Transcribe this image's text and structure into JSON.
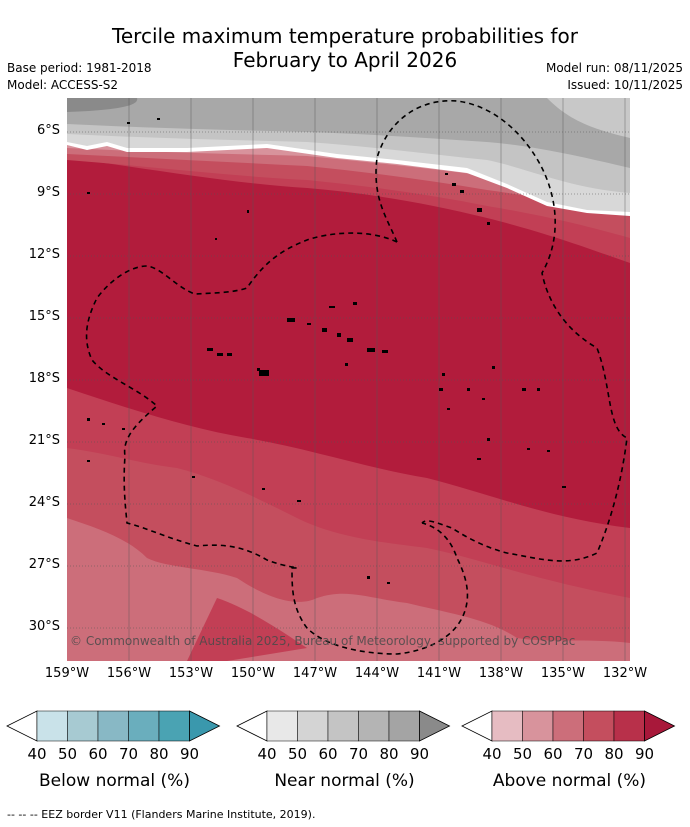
{
  "title_line1": "Tercile maximum temperature probabilities for",
  "title_line2": "February to April 2026",
  "base_period": "Base period: 1981-2018",
  "model": "Model: ACCESS-S2",
  "model_run": "Model run: 08/11/2025",
  "issued": "Issued: 10/11/2025",
  "copyright": "© Commonwealth of Australia 2025, Bureau of Meteorology, supported by COSPPac",
  "lat_labels": [
    "6°S",
    "9°S",
    "12°S",
    "15°S",
    "18°S",
    "21°S",
    "24°S",
    "27°S",
    "30°S"
  ],
  "lon_labels": [
    "159°W",
    "156°W",
    "153°W",
    "150°W",
    "147°W",
    "144°W",
    "141°W",
    "138°W",
    "135°W",
    "132°W"
  ],
  "legends": [
    {
      "title": "Below normal (%)",
      "ticks": [
        "40",
        "50",
        "60",
        "70",
        "80",
        "90"
      ],
      "colors": [
        "#c9e2e9",
        "#a7cad2",
        "#88b8c5",
        "#6aaebd",
        "#4aa3b3",
        "#3a98ad"
      ]
    },
    {
      "title": "Near normal (%)",
      "ticks": [
        "40",
        "50",
        "60",
        "70",
        "80",
        "90"
      ],
      "colors": [
        "#e8e8e8",
        "#d4d4d4",
        "#c4c4c4",
        "#b4b4b4",
        "#a4a4a4",
        "#8a8a8a"
      ]
    },
    {
      "title": "Above normal (%)",
      "ticks": [
        "40",
        "50",
        "60",
        "70",
        "80",
        "90"
      ],
      "colors": [
        "#e6bcc2",
        "#d8939c",
        "#cc6e7a",
        "#c44e5e",
        "#b8304a",
        "#a8183a"
      ]
    }
  ],
  "footer": "-- -- -- EEZ border V11 (Flanders Marine Institute, 2019)."
}
